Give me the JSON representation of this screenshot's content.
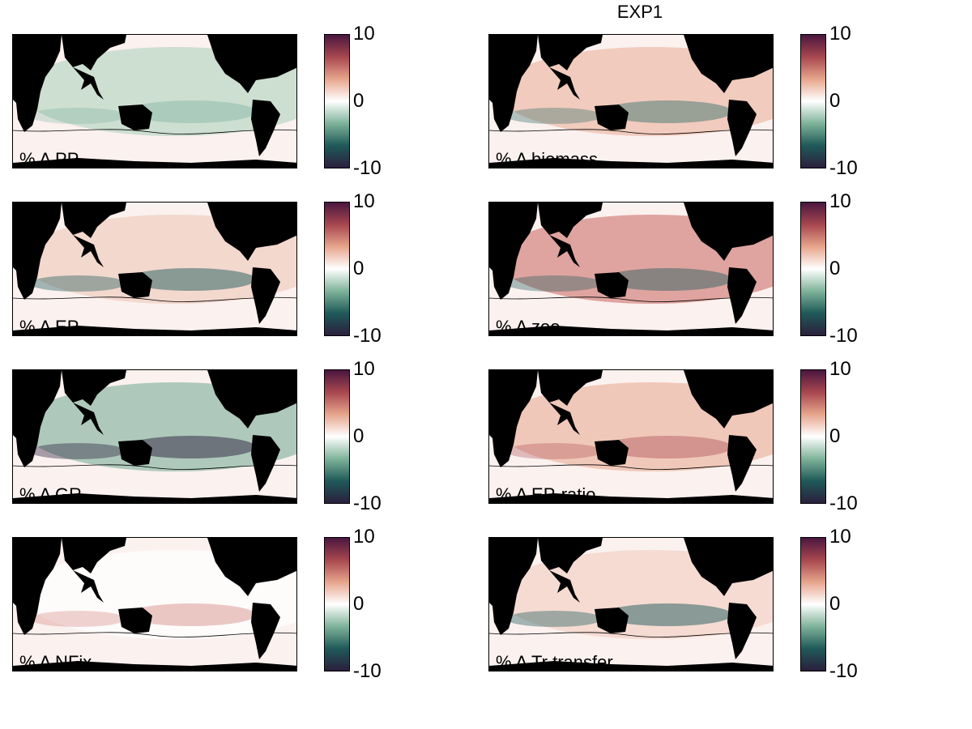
{
  "figure_title": "EXP1",
  "colors": {
    "ocean_neutral": "#fbf1ef",
    "land": "#000000",
    "cmap": [
      "#2b1f3d",
      "#1f5a59",
      "#7fb39a",
      "#ffffff",
      "#e7a58c",
      "#a8474f",
      "#4a1640"
    ]
  },
  "chart_data": [
    {
      "type": "heatmap",
      "label": "% Δ PP",
      "colorbar": {
        "min": -10,
        "max": 10,
        "ticks": [
          10,
          0,
          -10
        ]
      }
    },
    {
      "type": "heatmap",
      "label": "% Δ biomass",
      "colorbar": {
        "min": -10,
        "max": 10,
        "ticks": [
          10,
          0,
          -10
        ]
      }
    },
    {
      "type": "heatmap",
      "label": "% Δ EP",
      "colorbar": {
        "min": -10,
        "max": 10,
        "ticks": [
          10,
          0,
          -10
        ]
      }
    },
    {
      "type": "heatmap",
      "label": "% Δ zoo",
      "colorbar": {
        "min": -10,
        "max": 10,
        "ticks": [
          10,
          0,
          -10
        ]
      }
    },
    {
      "type": "heatmap",
      "label": "% Δ GR",
      "colorbar": {
        "min": -10,
        "max": 10,
        "ticks": [
          10,
          0,
          -10
        ]
      }
    },
    {
      "type": "heatmap",
      "label": "% Δ EP-ratio",
      "colorbar": {
        "min": -10,
        "max": 10,
        "ticks": [
          10,
          0,
          -10
        ]
      }
    },
    {
      "type": "heatmap",
      "label": "% Δ NFix",
      "colorbar": {
        "min": -10,
        "max": 10,
        "ticks": [
          10,
          0,
          -10
        ]
      }
    },
    {
      "type": "heatmap",
      "label": "% Δ Tr transfer",
      "colorbar": {
        "min": -10,
        "max": 10,
        "ticks": [
          10,
          0,
          -10
        ]
      }
    }
  ]
}
